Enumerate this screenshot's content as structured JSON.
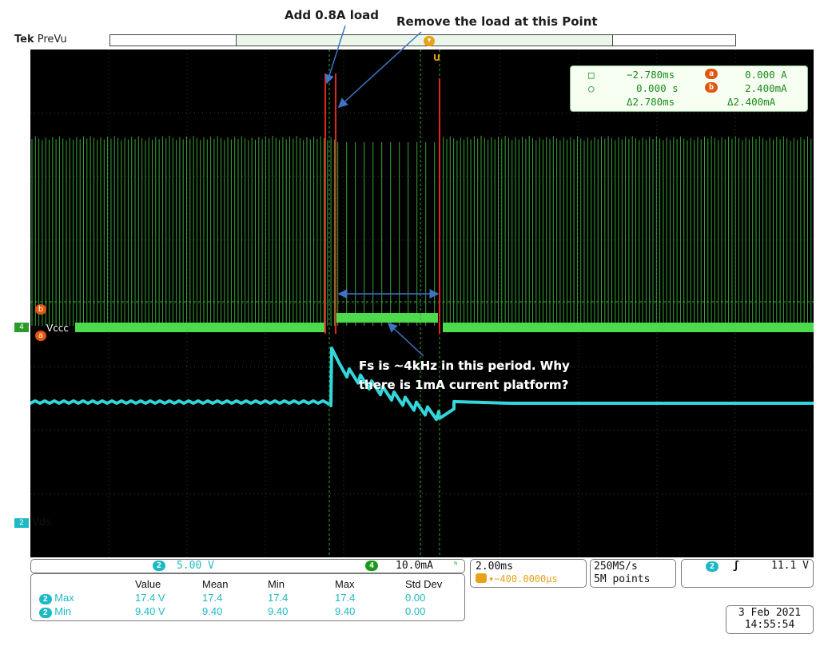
{
  "annotations": {
    "add_load": "Add 0.8A load",
    "remove_load": "Remove the load at this Point",
    "question_line1": "Fs is ~4kHz in this period. Why",
    "question_line2": "there is 1mA current platform?"
  },
  "header": {
    "brand": "Tek",
    "mode": "PreVu"
  },
  "channels": {
    "ch2_label": "Vds",
    "ch4_label": "Vccc",
    "ch2_number": "2",
    "ch4_number": "4",
    "ref_a": "a",
    "ref_b": "b",
    "trigger_marker": "U"
  },
  "cursors": {
    "row1_left": "−2.780ms",
    "row1_chip": "a",
    "row1_right": "0.000 A",
    "row2_left": "0.000 s",
    "row2_chip": "b",
    "row2_right": "2.400mA",
    "row3_left": "Δ2.780ms",
    "row3_right": "Δ2.400mA"
  },
  "bottom": {
    "ch2_scale": "5.00 V",
    "ch4_scale": "10.0mA",
    "timebase": "2.00ms",
    "offset": "▾−400.0000μs",
    "sample_rate": "250MS/s",
    "record": "5M points",
    "trigger_level": "11.1 V",
    "date": "3 Feb  2021",
    "time": "14:55:54"
  },
  "measurements": {
    "headers": [
      "",
      "Value",
      "Mean",
      "Min",
      "Max",
      "Std Dev"
    ],
    "rows": [
      {
        "chip": "2",
        "name": "Max",
        "values": [
          "17.4 V",
          "17.4",
          "17.4",
          "17.4",
          "0.00"
        ]
      },
      {
        "chip": "2",
        "name": "Min",
        "values": [
          "9.40 V",
          "9.40",
          "9.40",
          "9.40",
          "0.00"
        ]
      }
    ]
  },
  "colors": {
    "ch4": "#4ddb4d",
    "ch2": "#33d6dc",
    "marker_red": "#e3241b",
    "arrow_blue": "#3d74c4"
  }
}
